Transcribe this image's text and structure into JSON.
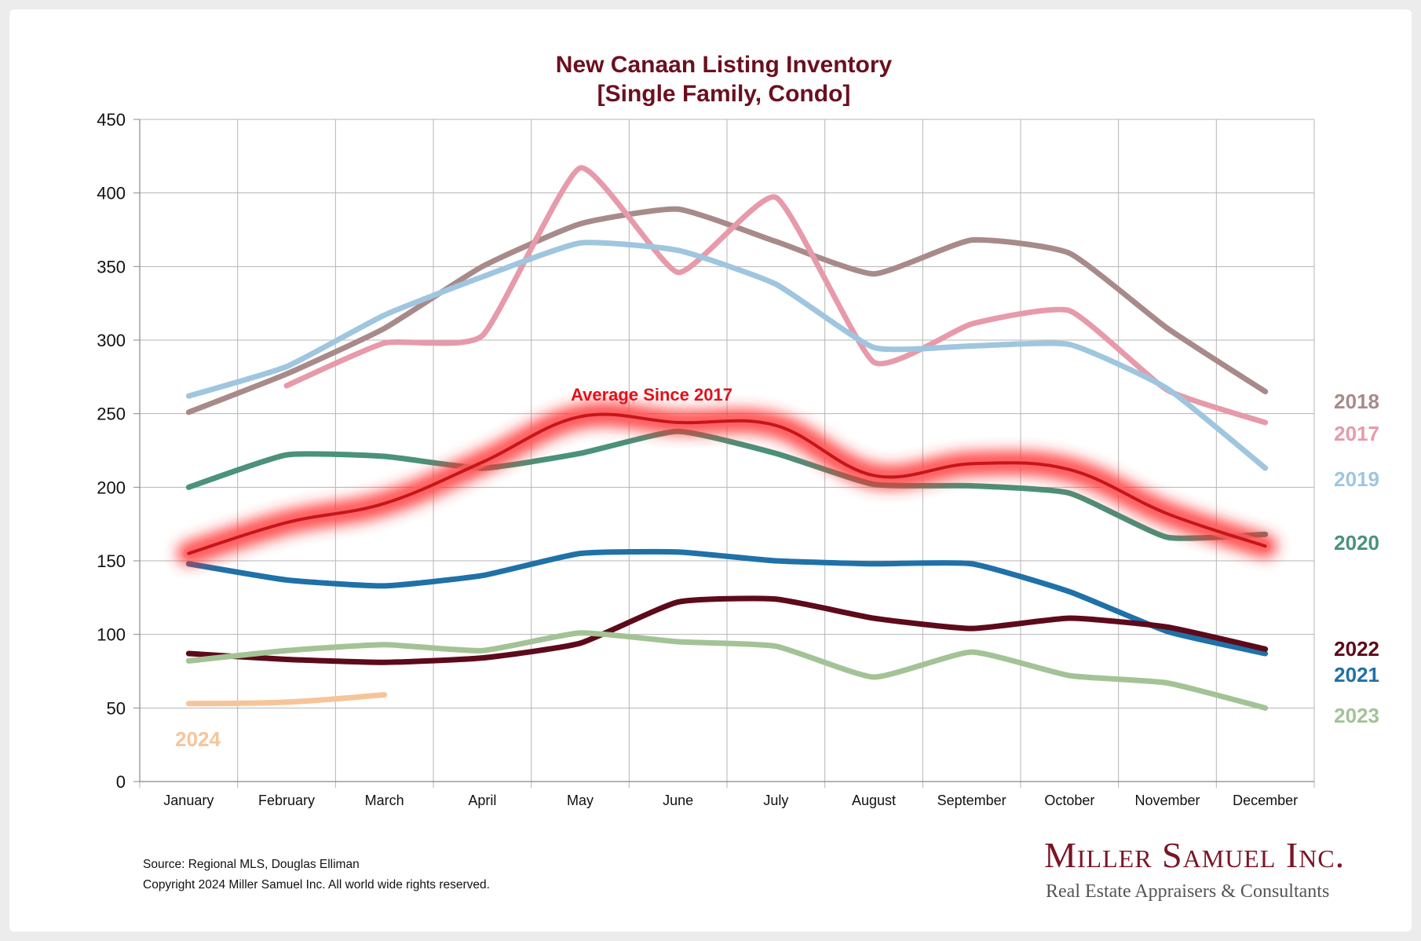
{
  "chart_data": {
    "type": "line",
    "title_line1": "New Canaan Listing Inventory",
    "title_line2": "[Single Family, Condo]",
    "categories": [
      "January",
      "February",
      "March",
      "April",
      "May",
      "June",
      "July",
      "August",
      "September",
      "October",
      "November",
      "December"
    ],
    "ylim": [
      0,
      450
    ],
    "yticks": [
      0,
      50,
      100,
      150,
      200,
      250,
      300,
      350,
      400,
      450
    ],
    "grid": true,
    "series": [
      {
        "name": "2018",
        "color": "#a88a8a",
        "values": [
          251,
          277,
          308,
          350,
          379,
          389,
          367,
          345,
          368,
          359,
          308,
          265
        ]
      },
      {
        "name": "2017",
        "color": "#e69aaa",
        "values": [
          null,
          269,
          298,
          303,
          417,
          346,
          397,
          285,
          311,
          320,
          266,
          244
        ]
      },
      {
        "name": "2019",
        "color": "#9fc6de",
        "values": [
          262,
          282,
          317,
          343,
          366,
          361,
          338,
          295,
          296,
          297,
          267,
          213
        ]
      },
      {
        "name": "2020",
        "color": "#4a9279",
        "values": [
          200,
          222,
          221,
          213,
          223,
          238,
          223,
          202,
          201,
          196,
          166,
          168
        ]
      },
      {
        "name": "2021",
        "color": "#1f71a8",
        "values": [
          148,
          137,
          133,
          140,
          155,
          156,
          150,
          148,
          148,
          129,
          102,
          87
        ]
      },
      {
        "name": "2022",
        "color": "#5d0a1b",
        "values": [
          87,
          83,
          81,
          84,
          94,
          122,
          124,
          111,
          104,
          111,
          105,
          90
        ]
      },
      {
        "name": "2023",
        "color": "#a3c396",
        "values": [
          82,
          89,
          93,
          89,
          101,
          95,
          92,
          71,
          88,
          72,
          67,
          50
        ]
      },
      {
        "name": "2024",
        "color": "#f7c49a",
        "values": [
          53,
          54,
          59,
          null,
          null,
          null,
          null,
          null,
          null,
          null,
          null,
          null
        ]
      },
      {
        "name": "Average  Since 2017",
        "color": "#c8141c",
        "glow": true,
        "values": [
          155,
          176,
          189,
          217,
          248,
          244,
          242,
          208,
          216,
          212,
          182,
          160
        ]
      }
    ]
  },
  "footer": {
    "source": "Source: Regional MLS, Douglas Elliman",
    "copyright": "Copyright 2024 Miller Samuel Inc.  All world wide rights reserved."
  },
  "logo": {
    "name": "Miller Samuel Inc.",
    "tagline": "Real Estate Appraisers & Consultants"
  }
}
